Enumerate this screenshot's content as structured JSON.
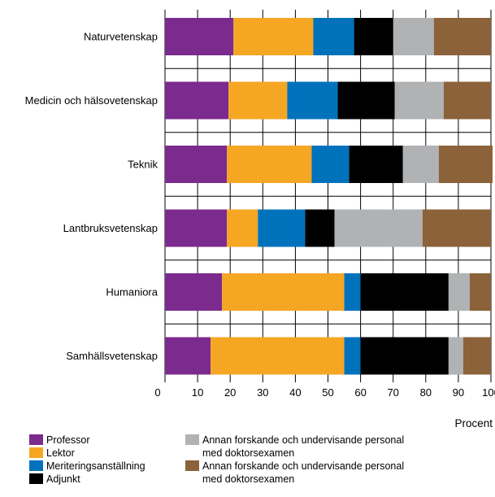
{
  "chart_data": {
    "type": "bar",
    "orientation": "horizontal",
    "stacked": true,
    "categories": [
      "Naturvetenskap",
      "Medicin och hälsovetenskap",
      "Teknik",
      "Lantbruksvetenskap",
      "Humaniora",
      "Samhällsvetenskap"
    ],
    "series": [
      {
        "name": "Professor",
        "color": "#7b2a8e",
        "values": [
          21,
          19.5,
          19,
          19,
          17.5,
          14
        ]
      },
      {
        "name": "Lektor",
        "color": "#f5a623",
        "values": [
          24.5,
          18,
          26,
          9.5,
          37.5,
          41
        ]
      },
      {
        "name": "Meriteringsanställning",
        "color": "#0072bc",
        "values": [
          12.5,
          15.5,
          11.5,
          14.5,
          5,
          5
        ]
      },
      {
        "name": "Adjunkt",
        "color": "#000000",
        "values": [
          12,
          17.5,
          16.5,
          9,
          27,
          27
        ]
      },
      {
        "name": "Annan forskande och undervisande personal med doktorsexamen",
        "color": "#b0b2b4",
        "values": [
          12.5,
          15,
          11,
          27,
          6.5,
          4.5
        ]
      },
      {
        "name": "Annan forskande och undervisande personal med doktorsexamen",
        "color": "#8b6239",
        "values": [
          17.5,
          14.5,
          16.5,
          21,
          6.5,
          8.5
        ]
      }
    ],
    "xlabel": "Procent",
    "ylabel": "",
    "xlim": [
      0,
      100
    ],
    "xticks": [
      0,
      10,
      20,
      30,
      40,
      50,
      60,
      70,
      80,
      90,
      100
    ],
    "grid": "vertical",
    "legend_position": "bottom"
  }
}
